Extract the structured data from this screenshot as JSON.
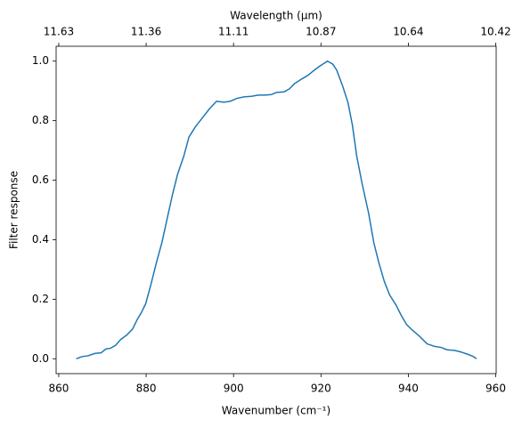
{
  "chart_data": {
    "type": "line",
    "xlabel": "Wavenumber (cm⁻¹)",
    "ylabel": "Filter response",
    "x2label": "Wavelength (μm)",
    "color": "#1f77b4",
    "x": [
      864.0,
      865.3,
      866.7,
      868.3,
      869.7,
      870.8,
      871.8,
      873.0,
      874.2,
      875.6,
      876.9,
      877.9,
      878.9,
      879.9,
      881.1,
      882.3,
      883.6,
      884.8,
      886.0,
      887.2,
      888.6,
      889.8,
      891.3,
      892.9,
      894.5,
      896.1,
      897.8,
      899.2,
      900.8,
      902.4,
      904.1,
      905.7,
      907.3,
      908.7,
      909.9,
      911.6,
      912.8,
      914.0,
      915.6,
      917.1,
      918.5,
      919.9,
      921.5,
      922.7,
      923.6,
      925.0,
      926.2,
      927.2,
      928.2,
      929.4,
      930.9,
      932.1,
      933.3,
      934.5,
      935.7,
      937.2,
      938.4,
      939.6,
      941.0,
      942.6,
      944.3,
      945.9,
      947.5,
      948.9,
      950.6,
      952.2,
      953.6,
      954.8,
      955.6
    ],
    "values": [
      0.0,
      0.007,
      0.01,
      0.018,
      0.02,
      0.033,
      0.035,
      0.045,
      0.065,
      0.08,
      0.1,
      0.13,
      0.155,
      0.185,
      0.25,
      0.32,
      0.39,
      0.47,
      0.55,
      0.62,
      0.68,
      0.745,
      0.78,
      0.81,
      0.84,
      0.865,
      0.862,
      0.865,
      0.875,
      0.88,
      0.882,
      0.886,
      0.886,
      0.888,
      0.895,
      0.897,
      0.907,
      0.925,
      0.94,
      0.953,
      0.97,
      0.985,
      1.0,
      0.99,
      0.97,
      0.915,
      0.86,
      0.785,
      0.68,
      0.59,
      0.49,
      0.39,
      0.32,
      0.26,
      0.215,
      0.18,
      0.145,
      0.115,
      0.095,
      0.075,
      0.05,
      0.042,
      0.038,
      0.03,
      0.028,
      0.022,
      0.015,
      0.008,
      0.0
    ],
    "xlim": [
      859.4,
      960.1
    ],
    "ylim": [
      -0.05,
      1.05
    ],
    "xticks": [
      860,
      880,
      900,
      920,
      940,
      960
    ],
    "yticks": [
      {
        "value": 0.0,
        "label": "0.0"
      },
      0.2,
      0.4,
      0.6,
      0.8,
      {
        "value": 1.0,
        "label": "1.0"
      }
    ],
    "x2ticks": [
      {
        "value": 860,
        "label": "11.63"
      },
      {
        "value": 880,
        "label": "11.36"
      },
      {
        "value": 900,
        "label": "11.11"
      },
      {
        "value": 920,
        "label": "10.87"
      },
      {
        "value": 940,
        "label": "10.64"
      },
      {
        "value": 960,
        "label": "10.42"
      }
    ],
    "grid": false
  }
}
